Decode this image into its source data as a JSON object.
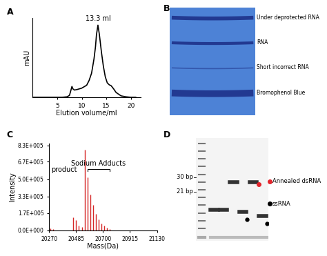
{
  "chart_data": [
    {
      "type": "line",
      "title": "A",
      "x": [
        0,
        2,
        4,
        6,
        7,
        7.5,
        7.8,
        8,
        8.2,
        8.5,
        9,
        10,
        11,
        11.5,
        12,
        12.5,
        12.8,
        13,
        13.3,
        13.6,
        14,
        14.4,
        14.8,
        15.2,
        15.6,
        16,
        16.5,
        17,
        18,
        19,
        20,
        21
      ],
      "values": [
        0,
        0,
        0,
        0,
        2,
        8,
        30,
        45,
        35,
        30,
        32,
        38,
        50,
        70,
        100,
        160,
        210,
        260,
        300,
        260,
        190,
        130,
        85,
        60,
        52,
        48,
        35,
        20,
        6,
        2,
        0,
        0
      ],
      "xlim": [
        0,
        22
      ],
      "xticks": [
        5,
        10,
        15,
        20
      ],
      "ylim": [
        0,
        330
      ],
      "yticks": [],
      "tick_labels": "x",
      "xlabel": "Elution volume/ml",
      "ylabel": "mAU",
      "color": "#000000",
      "annotations": [
        "13.3 ml"
      ]
    },
    {
      "type": "gel",
      "title": "B",
      "band_labels": [
        "Under deprotected RNA",
        "RNA",
        "Short incorrect RNA",
        "Bromophenol Blue"
      ]
    },
    {
      "type": "stem",
      "title": "C",
      "x": [
        20280,
        20300,
        20460,
        20483,
        20505,
        20531,
        20553,
        20575,
        20597,
        20619,
        20641,
        20663,
        20685,
        20707,
        20729,
        20751
      ],
      "values": [
        20000,
        15000,
        130000,
        100000,
        45000,
        30000,
        790000,
        520000,
        350000,
        250000,
        160000,
        110000,
        70000,
        45000,
        25000,
        12000
      ],
      "xlim": [
        20270,
        21130
      ],
      "xticks": [
        20270,
        20485,
        20700,
        20915,
        21130
      ],
      "ylim": [
        0,
        850000
      ],
      "yticks": [
        {
          "value": 0,
          "label": "0.0E+000"
        },
        {
          "value": 170000,
          "label": "1.7E+005"
        },
        {
          "value": 330000,
          "label": "3.3E+005"
        },
        {
          "value": 500000,
          "label": "5.0E+005"
        },
        {
          "value": 670000,
          "label": "6.7E+005"
        },
        {
          "value": 830000,
          "label": "8.3E+005"
        }
      ],
      "xlabel": "Mass(Da)",
      "ylabel": "Intensity",
      "color": "#d62828",
      "annotations": [
        "product",
        "Sodium Adducts"
      ]
    },
    {
      "type": "gel",
      "title": "D",
      "ladder_labels": [
        "30 bp",
        "21 bp"
      ],
      "series": [
        {
          "name": "Annealed dsRNA",
          "color": "#e3242b"
        },
        {
          "name": "ssRNA",
          "color": "#000000"
        }
      ]
    }
  ]
}
